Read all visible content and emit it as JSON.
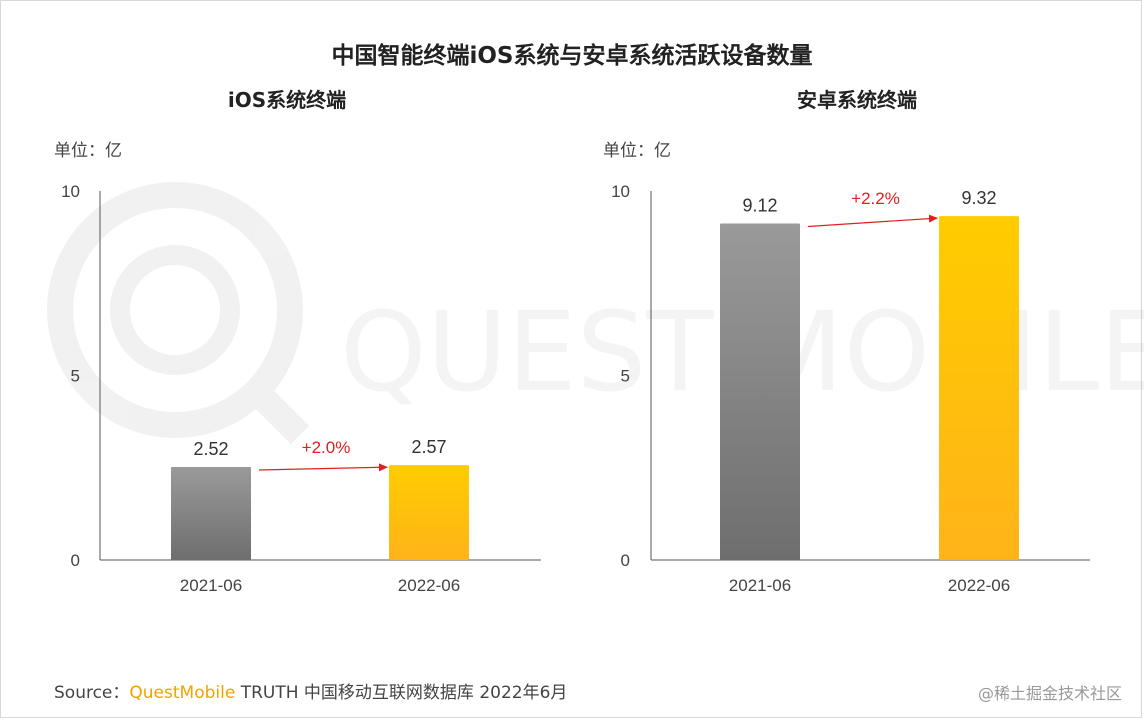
{
  "title": "中国智能终端iOS系统与安卓系统活跃设备数量",
  "source": {
    "prefix": "Source：",
    "brand": "QuestMobile",
    "rest": "TRUTH 中国移动互联网数据库 2022年6月"
  },
  "credit": "@稀土掘金技术社区",
  "watermark_text": "QUEST MOBILE",
  "colors": {
    "gray_bar": "#7f7f7f",
    "yellow_bar": "#ffc000",
    "arrow": "#e02020"
  },
  "chart_data": [
    {
      "type": "bar",
      "title": "iOS系统终端",
      "unit": "单位：亿",
      "categories": [
        "2021-06",
        "2022-06"
      ],
      "values": [
        2.52,
        2.57
      ],
      "value_labels": [
        "2.52",
        "2.57"
      ],
      "yticks": [
        "0",
        "5",
        "10"
      ],
      "ylim": [
        0,
        10
      ],
      "growth_label": "+2.0%"
    },
    {
      "type": "bar",
      "title": "安卓系统终端",
      "unit": "单位：亿",
      "categories": [
        "2021-06",
        "2022-06"
      ],
      "values": [
        9.12,
        9.32
      ],
      "value_labels": [
        "9.12",
        "9.32"
      ],
      "yticks": [
        "0",
        "5",
        "10"
      ],
      "ylim": [
        0,
        10
      ],
      "growth_label": "+2.2%"
    }
  ]
}
